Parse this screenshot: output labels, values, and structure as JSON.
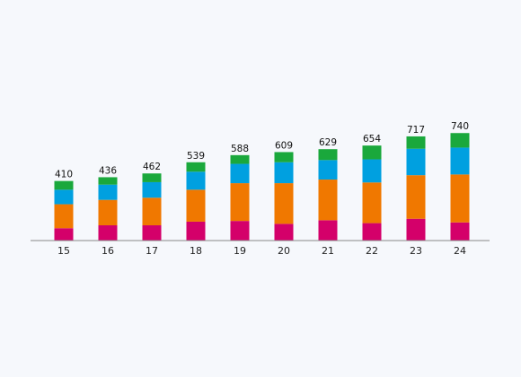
{
  "chart_data": {
    "type": "bar",
    "stacked": true,
    "categories": [
      "15",
      "16",
      "17",
      "18",
      "19",
      "20",
      "21",
      "22",
      "23",
      "24"
    ],
    "totals": [
      410,
      436,
      462,
      539,
      588,
      609,
      629,
      654,
      717,
      740
    ],
    "series": [
      {
        "color": "#d4006a",
        "values": [
          85,
          105,
          105,
          130,
          135,
          115,
          140,
          120,
          150,
          125
        ]
      },
      {
        "color": "#f07800",
        "values": [
          165,
          175,
          190,
          220,
          260,
          280,
          280,
          280,
          300,
          330
        ]
      },
      {
        "color": "#00a0e0",
        "values": [
          100,
          105,
          107,
          124,
          133,
          144,
          134,
          159,
          182,
          185
        ]
      },
      {
        "color": "#1aa83c",
        "values": [
          60,
          51,
          60,
          65,
          60,
          70,
          75,
          95,
          85,
          100
        ]
      }
    ],
    "ylim": [
      0,
      760
    ],
    "grid": false,
    "legend": "none"
  }
}
